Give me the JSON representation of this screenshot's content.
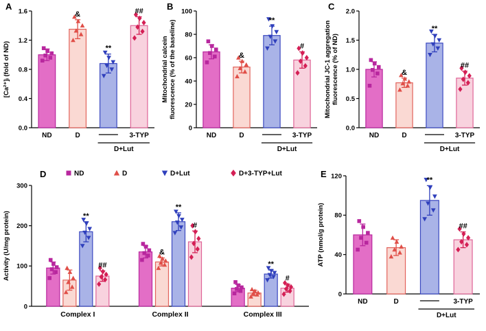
{
  "figure": {
    "background": "#ffffff"
  },
  "series_styles": {
    "ND": {
      "label": "ND",
      "fill": "#e36ec6",
      "edge": "#b8279e",
      "marker": "square",
      "marker_color": "#b8279e"
    },
    "D": {
      "label": "D",
      "fill": "#fad9d3",
      "edge": "#e2625b",
      "marker": "triangle-up",
      "marker_color": "#e04f48"
    },
    "D+Lut": {
      "label": "D+Lut",
      "fill": "#a9b3e7",
      "edge": "#3a48c0",
      "marker": "triangle-down",
      "marker_color": "#2f3fbc"
    },
    "D+3-TYP+Lut": {
      "label": "D+3-TYP+Lut",
      "fill": "#f8d2de",
      "edge": "#df6397",
      "marker": "diamond",
      "marker_color": "#d41f55"
    }
  },
  "chart_data": [
    {
      "panel_letter": "A",
      "type": "bar",
      "ylabel": [
        "[Ca²⁺]ᵢ (fold of ND)"
      ],
      "ylim": [
        0,
        1.6
      ],
      "yticks": [
        "0.0",
        "0.4",
        "0.8",
        "1.2",
        "1.6"
      ],
      "x_labels": {
        "first": "ND",
        "second": "D",
        "inhibitor": "3-TYP",
        "bracket": "D+Lut"
      },
      "bars": [
        {
          "series": "ND",
          "mean": 1.0,
          "sd": 0.08,
          "annotation": "",
          "points": [
            0.92,
            0.96,
            0.99,
            1.02,
            1.05,
            1.09
          ]
        },
        {
          "series": "D",
          "mean": 1.35,
          "sd": 0.13,
          "annotation": "&",
          "points": [
            1.2,
            1.28,
            1.33,
            1.4,
            1.46,
            1.52
          ]
        },
        {
          "series": "D+Lut",
          "mean": 0.88,
          "sd": 0.13,
          "annotation": "**",
          "points": [
            0.71,
            0.8,
            0.85,
            0.9,
            0.96,
            1.03
          ]
        },
        {
          "series": "D+3-TYP+Lut",
          "mean": 1.4,
          "sd": 0.12,
          "annotation": "##",
          "points": [
            1.23,
            1.32,
            1.38,
            1.44,
            1.5,
            1.55
          ]
        }
      ]
    },
    {
      "panel_letter": "B",
      "type": "bar",
      "ylabel": [
        "Mitochondrial calcein",
        "fluorescence (% of the baseline)"
      ],
      "ylim": [
        0,
        100
      ],
      "yticks": [
        "0",
        "20",
        "40",
        "60",
        "80",
        "100"
      ],
      "x_labels": {
        "first": "ND",
        "second": "D",
        "inhibitor": "3-TYP",
        "bracket": "D+Lut"
      },
      "bars": [
        {
          "series": "ND",
          "mean": 65,
          "sd": 6,
          "annotation": "",
          "points": [
            56,
            61,
            64,
            67,
            70,
            74
          ]
        },
        {
          "series": "D",
          "mean": 52,
          "sd": 5,
          "annotation": "&",
          "points": [
            44,
            48,
            51,
            54,
            57,
            60
          ]
        },
        {
          "series": "D+Lut",
          "mean": 79,
          "sd": 8,
          "annotation": "**",
          "points": [
            68,
            74,
            78,
            82,
            87,
            93
          ]
        },
        {
          "series": "D+3-TYP+Lut",
          "mean": 58,
          "sd": 7,
          "annotation": "#",
          "points": [
            47,
            53,
            57,
            60,
            64,
            68
          ]
        }
      ]
    },
    {
      "panel_letter": "C",
      "type": "bar",
      "ylabel": [
        "Mitochondrial JC-1 aggregation",
        "fluorescence (% of ND)"
      ],
      "ylim": [
        0,
        2
      ],
      "yticks": [
        "0.0",
        "0.5",
        "1.0",
        "1.5",
        "2.0"
      ],
      "x_labels": {
        "first": "ND",
        "second": "D",
        "inhibitor": "3-TYP",
        "bracket": "D+Lut"
      },
      "bars": [
        {
          "series": "ND",
          "mean": 1.0,
          "sd": 0.13,
          "annotation": "",
          "points": [
            0.72,
            0.93,
            0.99,
            1.04,
            1.1,
            1.16
          ]
        },
        {
          "series": "D",
          "mean": 0.77,
          "sd": 0.08,
          "annotation": "&",
          "points": [
            0.65,
            0.72,
            0.76,
            0.79,
            0.84,
            0.9
          ]
        },
        {
          "series": "D+Lut",
          "mean": 1.45,
          "sd": 0.15,
          "annotation": "**",
          "points": [
            1.25,
            1.36,
            1.43,
            1.5,
            1.57,
            1.65
          ]
        },
        {
          "series": "D+3-TYP+Lut",
          "mean": 0.85,
          "sd": 0.12,
          "annotation": "##",
          "points": [
            0.66,
            0.77,
            0.83,
            0.89,
            0.95,
            1.02
          ]
        }
      ]
    },
    {
      "panel_letter": "D",
      "type": "grouped-bar",
      "ylabel": [
        "Activity (U/mg protein)"
      ],
      "ylim": [
        0,
        300
      ],
      "yticks": [
        "0",
        "100",
        "200",
        "300"
      ],
      "categories": [
        "Complex I",
        "Complex II",
        "Complex III"
      ],
      "legend": [
        "ND",
        "D",
        "D+Lut",
        "D+3-TYP+Lut"
      ],
      "series": [
        {
          "name": "ND",
          "means": [
            95,
            135,
            45
          ],
          "sds": [
            15,
            15,
            9
          ],
          "annotations": [
            "",
            "",
            ""
          ],
          "points": [
            [
              70,
              85,
              92,
              97,
              105,
              115
            ],
            [
              115,
              126,
              132,
              139,
              148,
              155
            ],
            [
              32,
              38,
              43,
              47,
              52,
              60
            ]
          ]
        },
        {
          "name": "D",
          "means": [
            65,
            110,
            33
          ],
          "sds": [
            25,
            10,
            7
          ],
          "annotations": [
            "",
            "&",
            ""
          ],
          "points": [
            [
              35,
              48,
              60,
              70,
              85,
              95
            ],
            [
              95,
              103,
              108,
              113,
              118,
              125
            ],
            [
              24,
              29,
              32,
              34,
              38,
              42
            ]
          ]
        },
        {
          "name": "D+Lut",
          "means": [
            185,
            210,
            80
          ],
          "sds": [
            25,
            22,
            10
          ],
          "annotations": [
            "**",
            "**",
            "**"
          ],
          "points": [
            [
              150,
              170,
              183,
              192,
              205,
              215
            ],
            [
              182,
              196,
              208,
              215,
              224,
              235
            ],
            [
              65,
              73,
              78,
              83,
              88,
              95
            ]
          ]
        },
        {
          "name": "D+3-TYP+Lut",
          "means": [
            75,
            160,
            45
          ],
          "sds": [
            13,
            27,
            10
          ],
          "annotations": [
            "##",
            "#",
            "#"
          ],
          "points": [
            [
              55,
              66,
              73,
              79,
              86,
              95
            ],
            [
              122,
              142,
              156,
              168,
              185,
              200
            ],
            [
              30,
              38,
              43,
              48,
              52,
              58
            ]
          ]
        }
      ]
    },
    {
      "panel_letter": "E",
      "type": "bar",
      "ylabel": [
        "ATP (nmol/g protein)"
      ],
      "ylim": [
        0,
        120
      ],
      "yticks": [
        "0",
        "40",
        "80",
        "120"
      ],
      "x_labels": {
        "first": "ND",
        "second": "D",
        "inhibitor": "3-TYP",
        "bracket": "D+Lut"
      },
      "bars": [
        {
          "series": "ND",
          "mean": 60,
          "sd": 11,
          "annotation": "",
          "points": [
            45,
            52,
            57,
            62,
            68,
            74
          ]
        },
        {
          "series": "D",
          "mean": 47,
          "sd": 8,
          "annotation": "",
          "points": [
            38,
            42,
            45,
            48,
            53,
            57
          ]
        },
        {
          "series": "D+Lut",
          "mean": 95,
          "sd": 15,
          "annotation": "**",
          "points": [
            76,
            85,
            92,
            99,
            108,
            116
          ]
        },
        {
          "series": "D+3-TYP+Lut",
          "mean": 55,
          "sd": 8,
          "annotation": "##",
          "points": [
            45,
            50,
            53,
            57,
            61,
            66
          ]
        }
      ]
    }
  ]
}
